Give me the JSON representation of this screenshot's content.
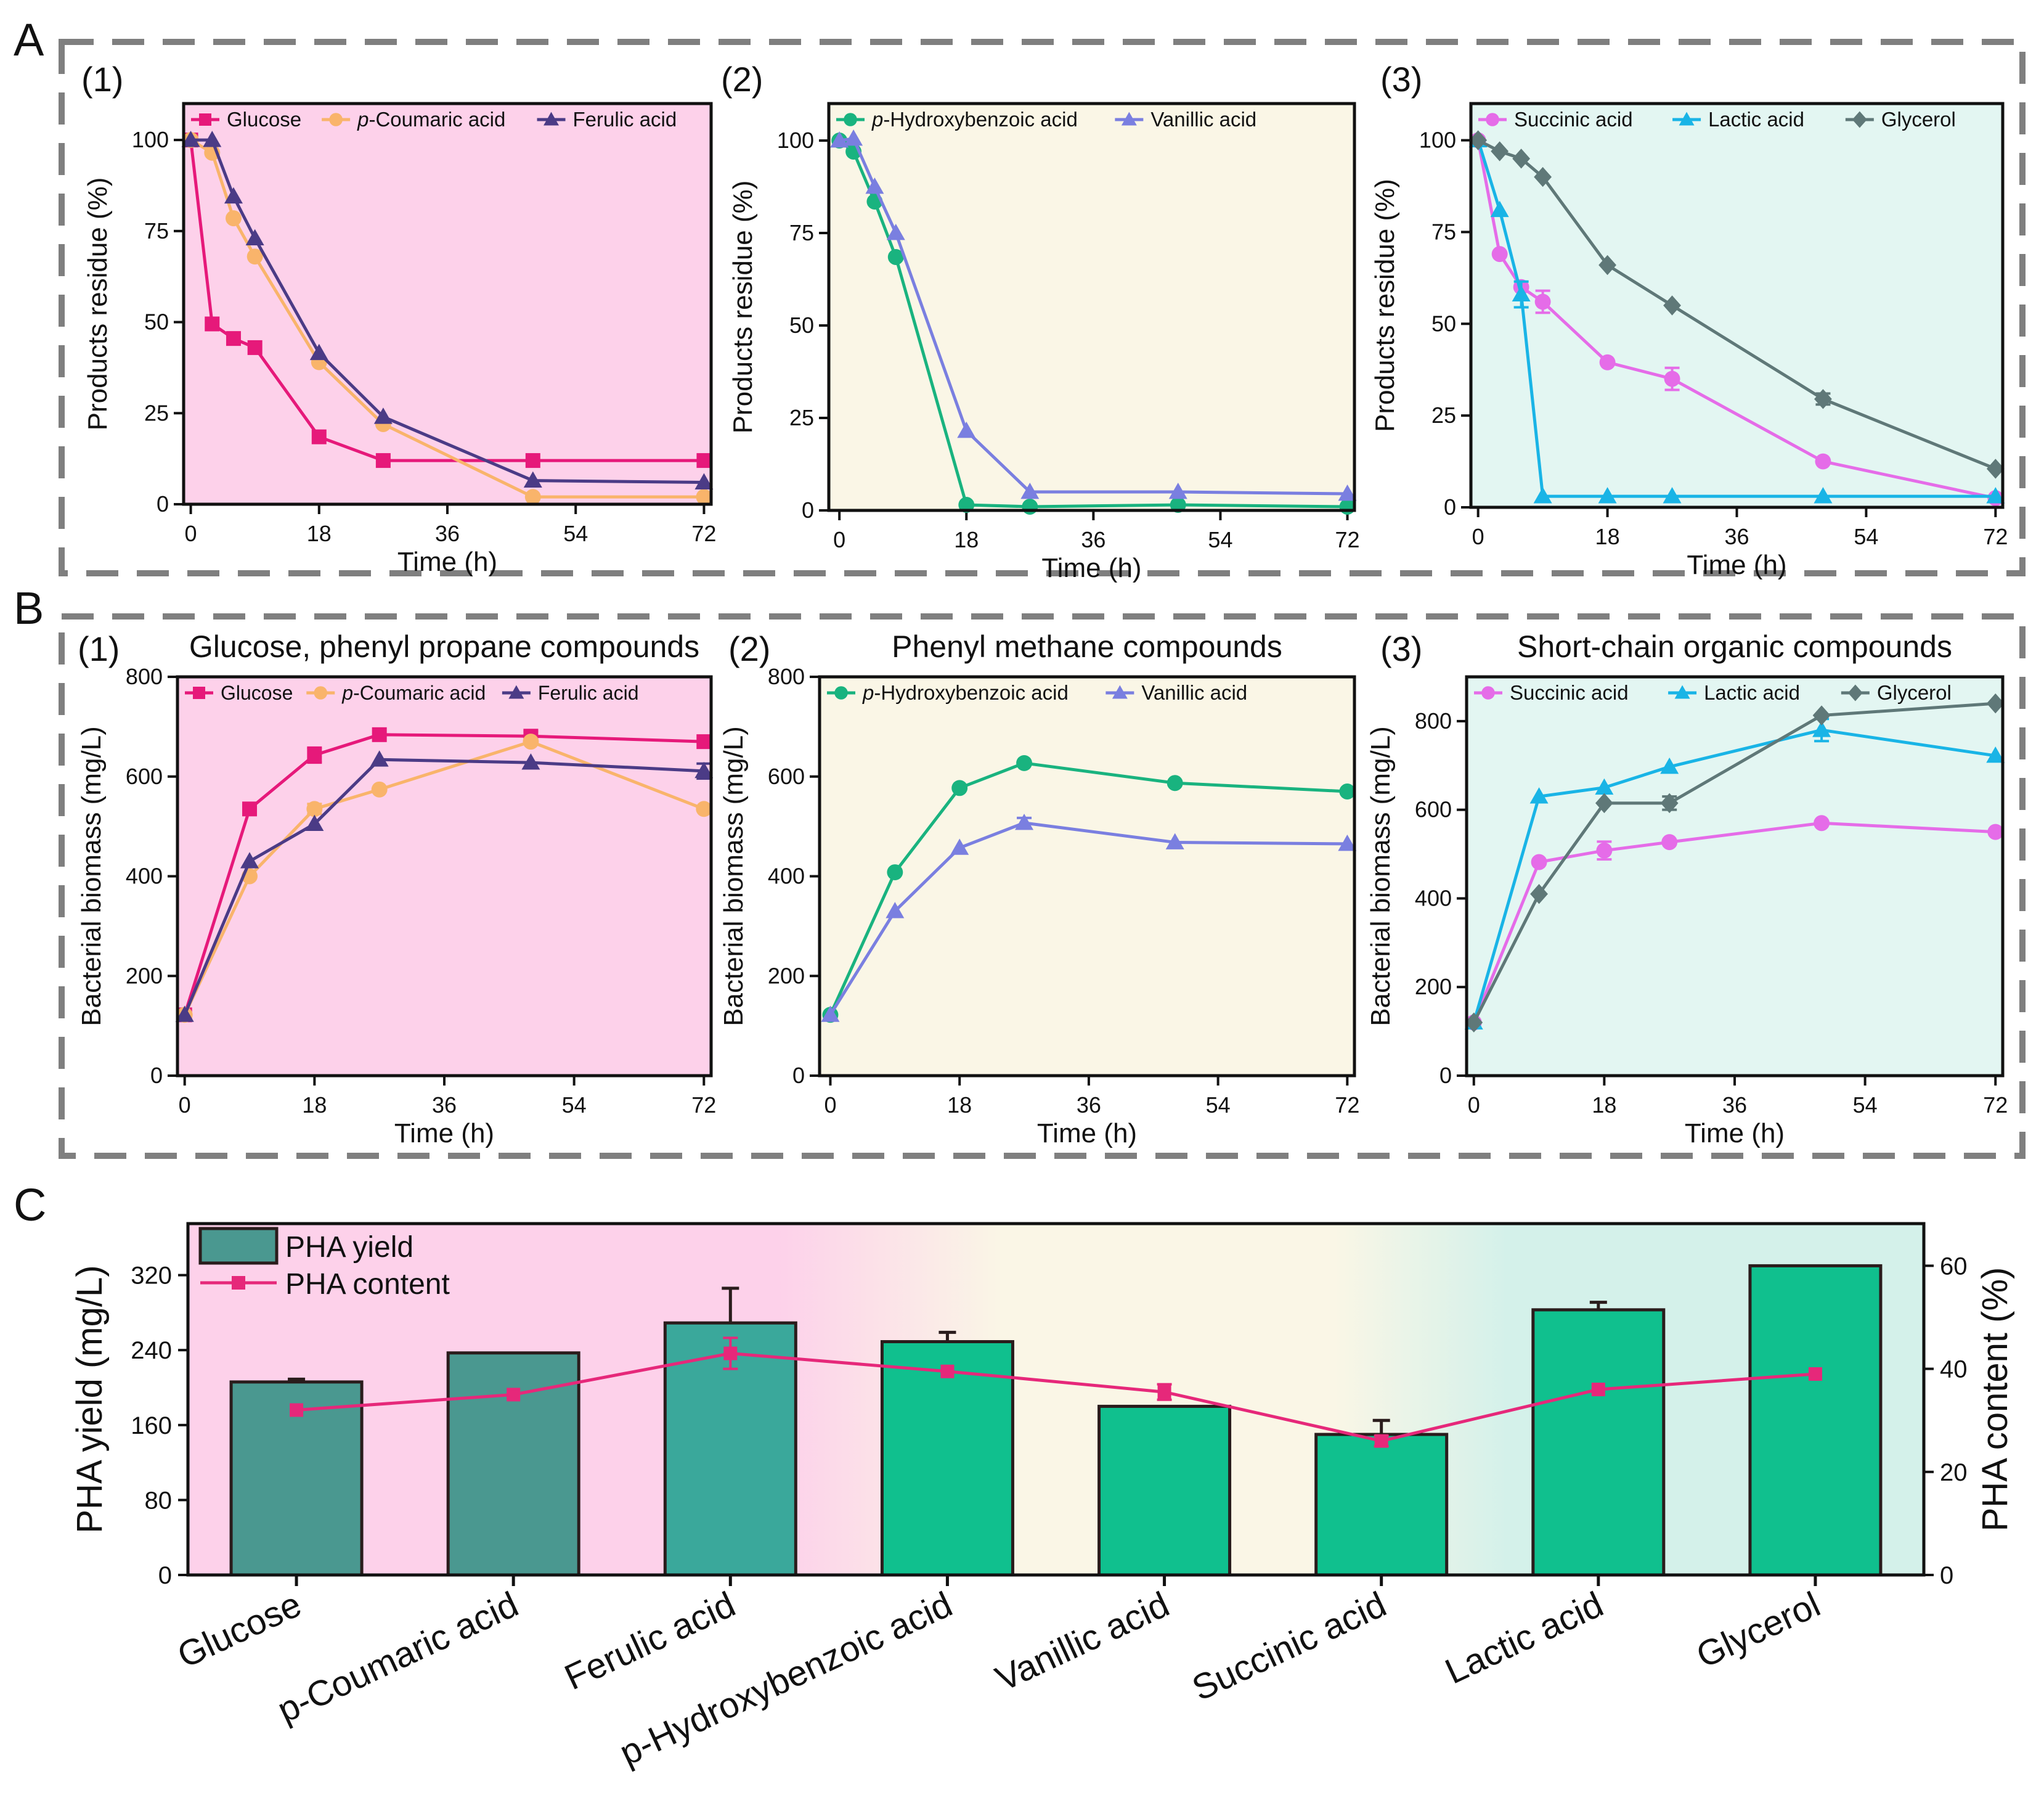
{
  "figure": {
    "panel_letters": {
      "A": "A",
      "B": "B",
      "C": "C"
    },
    "axis": {
      "time_label": "Time (h)",
      "residue_label": "Products residue (%)",
      "biomass_label": "Bacterial biomass (mg/L)"
    },
    "colors": {
      "glucose": "#e6197a",
      "coumaric": "#f9b46b",
      "ferulic": "#4b3b86",
      "hydroxybenzoic": "#19b37f",
      "vanillic": "#7a7fe0",
      "succinic": "#e56ce8",
      "lactic": "#19b4e6",
      "glycerol": "#5f7878",
      "bg_pink": "#fdd1ea",
      "bg_cream": "#faf6e6",
      "bg_mint": "#e3f6f2",
      "bar_teal": "#4a9890",
      "bar_green": "#10c08e",
      "content_line": "#e6287a"
    }
  },
  "chart_data": [
    {
      "id": "A1",
      "panel_label": "(1)",
      "type": "line",
      "title": "",
      "xlabel": "Time (h)",
      "ylabel": "Products residue (%)",
      "xlim": [
        -1,
        73
      ],
      "ylim": [
        0,
        110
      ],
      "xticks": [
        0,
        18,
        36,
        54,
        72
      ],
      "yticks": [
        0,
        25,
        50,
        75,
        100
      ],
      "legend_position": "top",
      "series": [
        {
          "name": "Glucose",
          "name_prefix": "",
          "name_suffix": "Glucose",
          "color": "#e6197a",
          "marker": "square",
          "x": [
            0,
            3,
            6,
            9,
            18,
            27,
            48,
            72
          ],
          "y": [
            100,
            49.5,
            45.5,
            43,
            18.5,
            12,
            12,
            12
          ],
          "err": [
            0,
            0,
            0,
            0,
            0,
            0,
            0,
            0
          ]
        },
        {
          "name": "p-Coumaric acid",
          "name_prefix": "p",
          "name_suffix": "-Coumaric acid",
          "color": "#f9b46b",
          "marker": "circle",
          "x": [
            0,
            3,
            6,
            9,
            18,
            27,
            48,
            72
          ],
          "y": [
            100,
            96.5,
            78.5,
            68,
            39,
            22,
            2,
            2
          ],
          "err": [
            0,
            0,
            0,
            0,
            0,
            0,
            0,
            0
          ]
        },
        {
          "name": "Ferulic acid",
          "name_prefix": "",
          "name_suffix": "Ferulic acid",
          "color": "#4b3b86",
          "marker": "triangle",
          "x": [
            0,
            3,
            6,
            9,
            18,
            27,
            48,
            72
          ],
          "y": [
            100,
            100,
            84.5,
            73,
            41.5,
            24,
            6.5,
            6
          ],
          "err": [
            0,
            0,
            0,
            0,
            0,
            0,
            0,
            0
          ]
        }
      ]
    },
    {
      "id": "A2",
      "panel_label": "(2)",
      "type": "line",
      "title": "",
      "xlabel": "Time (h)",
      "ylabel": "Products residue (%)",
      "xlim": [
        -1.5,
        73
      ],
      "ylim": [
        0,
        110
      ],
      "xticks": [
        0,
        18,
        36,
        54,
        72
      ],
      "yticks": [
        0,
        25,
        50,
        75,
        100
      ],
      "legend_position": "top",
      "series": [
        {
          "name": "p-Hydroxybenzoic acid",
          "name_prefix": "p",
          "name_suffix": "-Hydroxybenzoic acid",
          "color": "#19b37f",
          "marker": "circle",
          "x": [
            0,
            2,
            5,
            8,
            18,
            27,
            48,
            72
          ],
          "y": [
            100,
            97,
            83.5,
            68.5,
            1.5,
            1,
            1.5,
            1
          ],
          "err": [
            0,
            0,
            0,
            0,
            0,
            0,
            0,
            0
          ]
        },
        {
          "name": "Vanillic acid",
          "name_prefix": "",
          "name_suffix": "Vanillic acid",
          "color": "#7a7fe0",
          "marker": "triangle",
          "x": [
            0,
            2,
            5,
            8,
            18,
            27,
            48,
            72
          ],
          "y": [
            100,
            100.5,
            87.5,
            75,
            21.5,
            5,
            5,
            4.5
          ],
          "err": [
            0,
            0,
            0,
            0,
            0,
            0,
            0,
            0
          ]
        }
      ]
    },
    {
      "id": "A3",
      "panel_label": "(3)",
      "type": "line",
      "title": "",
      "xlabel": "Time (h)",
      "ylabel": "Products residue (%)",
      "xlim": [
        -1,
        73
      ],
      "ylim": [
        0,
        110
      ],
      "xticks": [
        0,
        18,
        36,
        54,
        72
      ],
      "yticks": [
        0,
        25,
        50,
        75,
        100
      ],
      "legend_position": "top",
      "series": [
        {
          "name": "Succinic acid",
          "name_prefix": "",
          "name_suffix": "Succinic acid",
          "color": "#e56ce8",
          "marker": "circle",
          "x": [
            0,
            3,
            6,
            9,
            18,
            27,
            48,
            72
          ],
          "y": [
            100,
            69,
            60,
            56,
            39.5,
            35,
            12.5,
            2.5
          ],
          "err": [
            0,
            0,
            0,
            3,
            0,
            3,
            0,
            0
          ]
        },
        {
          "name": "Lactic acid",
          "name_prefix": "",
          "name_suffix": "Lactic acid",
          "color": "#19b4e6",
          "marker": "triangle",
          "x": [
            0,
            3,
            6,
            9,
            18,
            27,
            48,
            72
          ],
          "y": [
            100,
            81,
            58,
            3,
            3,
            3,
            3,
            3
          ],
          "err": [
            0,
            0,
            3.5,
            0,
            0,
            0,
            0,
            0
          ]
        },
        {
          "name": "Glycerol",
          "name_prefix": "",
          "name_suffix": "Glycerol",
          "color": "#5f7878",
          "marker": "diamond",
          "x": [
            0,
            3,
            6,
            9,
            18,
            27,
            48,
            72
          ],
          "y": [
            100,
            97,
            95,
            90,
            66,
            55,
            29.5,
            10.5
          ],
          "err": [
            0,
            0,
            0,
            0,
            0,
            0,
            1.5,
            0
          ]
        }
      ]
    },
    {
      "id": "B1",
      "panel_label": "(1)",
      "type": "line",
      "title": "Glucose, phenyl propane compounds",
      "xlabel": "Time (h)",
      "ylabel": "Bacterial biomass (mg/L)",
      "xlim": [
        -1,
        73
      ],
      "ylim": [
        0,
        800
      ],
      "xticks": [
        0,
        18,
        36,
        54,
        72
      ],
      "yticks": [
        0,
        200,
        400,
        600,
        800
      ],
      "legend_position": "top",
      "legend_serif": true,
      "series": [
        {
          "name": "Glucose",
          "name_prefix": "",
          "name_suffix": "Glucose",
          "color": "#e6197a",
          "marker": "square",
          "x": [
            0,
            9,
            18,
            27,
            48,
            72
          ],
          "y": [
            122,
            535,
            643,
            684,
            681,
            670
          ],
          "err": [
            0,
            0,
            15,
            0,
            10,
            0
          ]
        },
        {
          "name": "p-Coumaric acid",
          "name_prefix": "p",
          "name_suffix": "-Coumaric acid",
          "color": "#f9b46b",
          "marker": "circle",
          "x": [
            0,
            9,
            18,
            27,
            48,
            72
          ],
          "y": [
            122,
            400,
            535,
            574,
            670,
            535
          ],
          "err": [
            0,
            0,
            10,
            0,
            0,
            0
          ]
        },
        {
          "name": "Ferulic acid",
          "name_prefix": "",
          "name_suffix": "Ferulic acid",
          "color": "#4b3b86",
          "marker": "triangle",
          "x": [
            0,
            9,
            18,
            27,
            48,
            72
          ],
          "y": [
            122,
            430,
            505,
            634,
            628,
            611
          ],
          "err": [
            0,
            0,
            0,
            0,
            0,
            15
          ]
        }
      ]
    },
    {
      "id": "B2",
      "panel_label": "(2)",
      "type": "line",
      "title": "Phenyl methane compounds",
      "xlabel": "Time (h)",
      "ylabel": "Bacterial biomass (mg/L)",
      "xlim": [
        -1.5,
        73
      ],
      "ylim": [
        0,
        800
      ],
      "xticks": [
        0,
        18,
        36,
        54,
        72
      ],
      "yticks": [
        0,
        200,
        400,
        600,
        800
      ],
      "legend_position": "top",
      "series": [
        {
          "name": "p-Hydroxybenzoic acid",
          "name_prefix": "p",
          "name_suffix": "-Hydroxybenzoic acid",
          "color": "#19b37f",
          "marker": "circle",
          "x": [
            0,
            9,
            18,
            27,
            48,
            72
          ],
          "y": [
            122,
            408,
            577,
            627,
            587,
            570
          ],
          "err": [
            0,
            0,
            0,
            0,
            0,
            0
          ]
        },
        {
          "name": "Vanillic acid",
          "name_prefix": "",
          "name_suffix": "Vanillic acid",
          "color": "#7a7fe0",
          "marker": "triangle",
          "x": [
            0,
            9,
            18,
            27,
            48,
            72
          ],
          "y": [
            122,
            330,
            457,
            507,
            468,
            465
          ],
          "err": [
            0,
            0,
            0,
            10,
            0,
            0
          ]
        }
      ]
    },
    {
      "id": "B3",
      "panel_label": "(3)",
      "type": "line",
      "title": "Short-chain organic compounds",
      "xlabel": "Time (h)",
      "ylabel": "Bacterial biomass (mg/L)",
      "xlim": [
        -1,
        73
      ],
      "ylim": [
        0,
        900
      ],
      "xticks": [
        0,
        18,
        36,
        54,
        72
      ],
      "yticks": [
        0,
        200,
        400,
        600,
        800
      ],
      "legend_position": "top",
      "series": [
        {
          "name": "Succinic acid",
          "name_prefix": "",
          "name_suffix": "Succinic acid",
          "color": "#e56ce8",
          "marker": "circle",
          "x": [
            0,
            9,
            18,
            27,
            48,
            72
          ],
          "y": [
            120,
            482,
            508,
            527,
            570,
            550
          ],
          "err": [
            0,
            0,
            20,
            0,
            0,
            0
          ]
        },
        {
          "name": "Lactic acid",
          "name_prefix": "",
          "name_suffix": "Lactic acid",
          "color": "#19b4e6",
          "marker": "triangle",
          "x": [
            0,
            9,
            18,
            27,
            48,
            72
          ],
          "y": [
            120,
            630,
            650,
            697,
            780,
            722
          ],
          "err": [
            0,
            0,
            0,
            0,
            25,
            0
          ]
        },
        {
          "name": "Glycerol",
          "name_prefix": "",
          "name_suffix": "Glycerol",
          "color": "#5f7878",
          "marker": "diamond",
          "x": [
            0,
            9,
            18,
            27,
            48,
            72
          ],
          "y": [
            120,
            410,
            615,
            615,
            813,
            840
          ],
          "err": [
            0,
            0,
            0,
            15,
            0,
            0
          ]
        }
      ]
    },
    {
      "id": "C",
      "type": "bar",
      "categories": [
        "Glucose",
        "p-Coumaric acid",
        "Ferulic acid",
        "p-Hydroxybenzoic acid",
        "Vanillic acid",
        "Succinic acid",
        "Lactic acid",
        "Glycerol"
      ],
      "bar_series": {
        "name": "PHA yield",
        "values": [
          206,
          237,
          269,
          249,
          180,
          150,
          283,
          330
        ],
        "err": [
          3,
          0,
          37,
          10,
          0,
          15,
          8,
          0
        ],
        "colors": [
          "#4a9890",
          "#4a9890",
          "#3aa89b",
          "#10c08e",
          "#10c08e",
          "#10c08e",
          "#10c08e",
          "#10c08e"
        ]
      },
      "line_series": {
        "name": "PHA content",
        "color": "#e6287a",
        "values": [
          32,
          35,
          43,
          39.5,
          35.5,
          26,
          36,
          39
        ],
        "err": [
          0,
          0,
          3,
          0,
          1.5,
          1,
          0,
          0
        ]
      },
      "ylabel": "PHA yield (mg/L)",
      "y2label": "PHA content (%)",
      "ylim": [
        0,
        375
      ],
      "y2lim": [
        0,
        68.18
      ],
      "yticks": [
        0,
        80,
        160,
        240,
        320
      ],
      "y2ticks": [
        0,
        20,
        40,
        60
      ],
      "legend_position": "top-left"
    }
  ]
}
